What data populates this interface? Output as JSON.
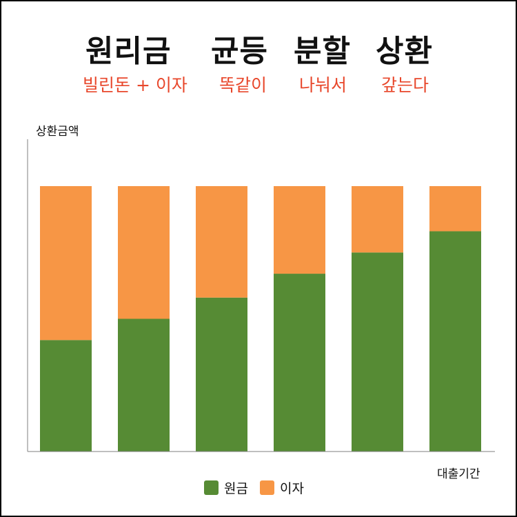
{
  "title": {
    "words": [
      "원리금",
      "균등",
      "분할",
      "상환"
    ]
  },
  "subtitle": {
    "words": [
      "빌린돈 + 이자",
      "똑같이",
      "나눠서",
      "갚는다"
    ],
    "color": "#e8472b"
  },
  "colors": {
    "principal": "#568b34",
    "interest": "#f79645",
    "axis": "#7f7f7f"
  },
  "chart_data": {
    "type": "bar",
    "stacked": true,
    "title": "원리금 균등 분할 상환",
    "xlabel": "대출기간",
    "ylabel": "상환금액",
    "categories": [
      "",
      "",
      "",
      "",
      "",
      ""
    ],
    "series": [
      {
        "name": "원금",
        "values": [
          42,
          50,
          58,
          67,
          75,
          83
        ],
        "color": "#568b34"
      },
      {
        "name": "이자",
        "values": [
          58,
          50,
          42,
          33,
          25,
          17
        ],
        "color": "#f79645"
      }
    ],
    "ylim": [
      0,
      100
    ],
    "grid": false,
    "legend": "bottom-center"
  },
  "legend": {
    "items": [
      {
        "label": "원금",
        "color": "#568b34"
      },
      {
        "label": "이자",
        "color": "#f79645"
      }
    ]
  }
}
